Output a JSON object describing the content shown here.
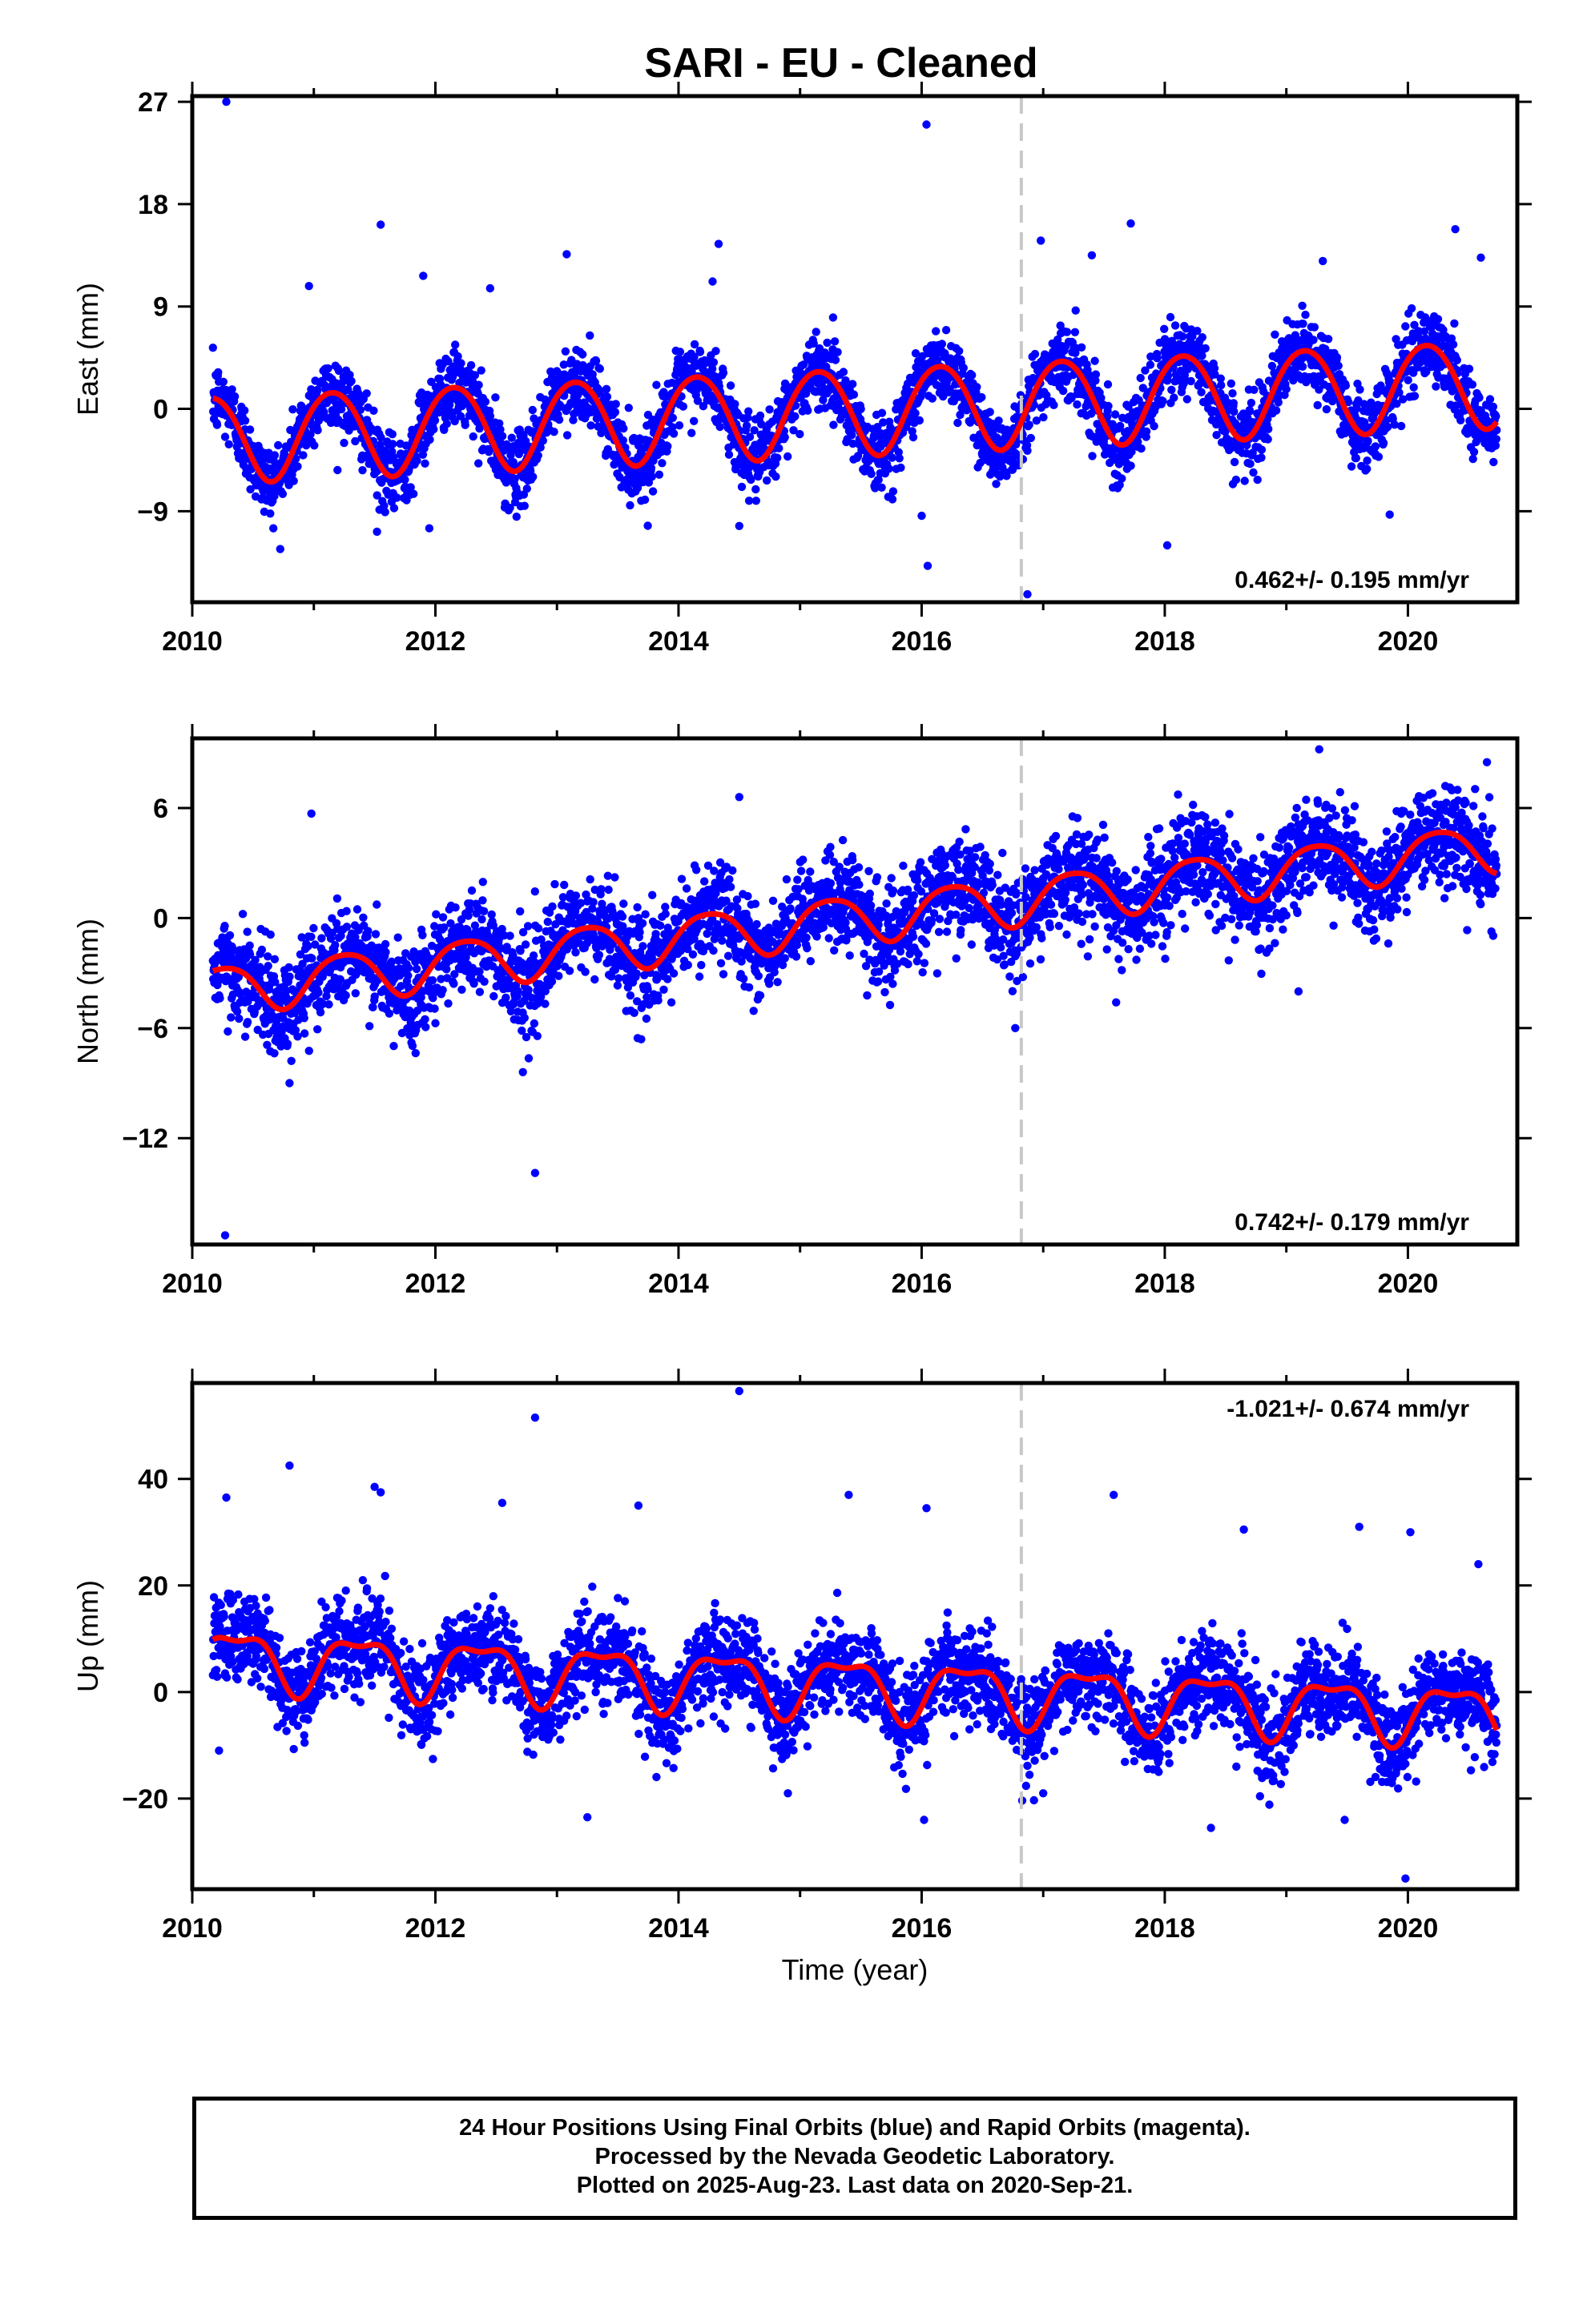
{
  "title": "SARI  - EU - Cleaned",
  "colors": {
    "data_points": "#0000ff",
    "model_fit": "#ff0000",
    "event_line": "#c8c8c8"
  },
  "xlabel": "Time (year)",
  "footer": {
    "line1": "24 Hour Positions Using Final Orbits (blue) and Rapid Orbits (magenta).",
    "line2": "Processed by the Nevada Geodetic Laboratory.",
    "line3": "Plotted on 2025-Aug-23. Last data on 2020-Sep-21."
  },
  "chart_data": [
    {
      "type": "scatter",
      "name": "east",
      "ylabel": "East (mm)",
      "rate_text": "0.462+/- 0.195 mm/yr",
      "xlim": [
        2010,
        2020.9
      ],
      "ylim": [
        -17,
        27.5
      ],
      "yticks": [
        -9,
        0,
        9,
        18,
        27
      ],
      "xticks": [
        2010,
        2012,
        2014,
        2016,
        2018,
        2020
      ],
      "event_line_x": 2016.82,
      "data_range": [
        2010.17,
        2020.73
      ],
      "model": {
        "ref_year": 2015.45,
        "offset": -0.1,
        "rate": 0.462,
        "annual_amp": 3.8,
        "annual_phase_year": 2010.4,
        "semiannual_amp": 0.3,
        "amp_growth": 0.0
      },
      "scatter_sigma": 1.6,
      "outliers": [
        [
          2010.28,
          27.0
        ],
        [
          2016.04,
          25.0
        ],
        [
          2011.55,
          16.2
        ],
        [
          2017.72,
          16.3
        ],
        [
          2020.39,
          15.8
        ],
        [
          2014.33,
          14.5
        ],
        [
          2016.98,
          14.8
        ],
        [
          2013.08,
          13.6
        ],
        [
          2017.4,
          13.5
        ],
        [
          2020.6,
          13.3
        ],
        [
          2019.3,
          13.0
        ],
        [
          2011.9,
          11.7
        ],
        [
          2014.28,
          11.2
        ],
        [
          2010.96,
          10.8
        ],
        [
          2012.45,
          10.6
        ],
        [
          2011.52,
          -10.8
        ],
        [
          2011.95,
          -10.5
        ],
        [
          2014.5,
          -10.3
        ],
        [
          2016.0,
          -9.4
        ],
        [
          2019.85,
          -9.3
        ],
        [
          2016.05,
          -13.8
        ],
        [
          2016.87,
          -16.3
        ],
        [
          2018.02,
          -12.0
        ]
      ]
    },
    {
      "type": "scatter",
      "name": "north",
      "ylabel": "North (mm)",
      "rate_text": "0.742+/- 0.179 mm/yr",
      "xlim": [
        2010,
        2020.9
      ],
      "ylim": [
        -17.8,
        9.8
      ],
      "yticks": [
        -12,
        -6,
        0,
        6
      ],
      "xticks": [
        2010,
        2012,
        2014,
        2016,
        2018,
        2020
      ],
      "event_line_x": 2016.82,
      "data_range": [
        2010.17,
        2020.73
      ],
      "model": {
        "ref_year": 2015.45,
        "offset": 0.0,
        "rate": 0.742,
        "annual_amp": 1.3,
        "annual_phase_year": 2010.5,
        "semiannual_amp": 0.2,
        "amp_growth": 0.0
      },
      "scatter_sigma": 1.3,
      "outliers": [
        [
          2012.82,
          -13.9
        ],
        [
          2010.27,
          -17.3
        ],
        [
          2010.98,
          5.7
        ],
        [
          2014.5,
          6.6
        ],
        [
          2019.27,
          9.2
        ],
        [
          2020.65,
          8.5
        ],
        [
          2012.72,
          -8.4
        ],
        [
          2010.8,
          -9.0
        ],
        [
          2019.1,
          -4.0
        ],
        [
          2017.6,
          -4.6
        ],
        [
          2016.77,
          -6.0
        ]
      ]
    },
    {
      "type": "scatter",
      "name": "up",
      "ylabel": "Up (mm)",
      "rate_text": "-1.021+/- 0.674 mm/yr",
      "xlim": [
        2010,
        2020.9
      ],
      "ylim": [
        -37,
        58
      ],
      "yticks": [
        -20,
        0,
        20,
        40
      ],
      "xticks": [
        2010,
        2012,
        2014,
        2016,
        2018,
        2020
      ],
      "event_line_x": 2016.82,
      "data_range": [
        2010.17,
        2020.73
      ],
      "model": {
        "ref_year": 2015.45,
        "offset": 1.2,
        "rate": -1.021,
        "annual_amp": 5.2,
        "annual_phase_year": 2010.62,
        "semiannual_amp": 2.0,
        "amp_growth": 0.0
      },
      "scatter_sigma": 4.2,
      "outliers": [
        [
          2014.5,
          56.5
        ],
        [
          2012.82,
          51.5
        ],
        [
          2010.8,
          42.5
        ],
        [
          2011.5,
          38.5
        ],
        [
          2011.55,
          37.5
        ],
        [
          2010.28,
          36.5
        ],
        [
          2017.58,
          37.0
        ],
        [
          2015.4,
          37.0
        ],
        [
          2013.67,
          35.0
        ],
        [
          2016.04,
          34.5
        ],
        [
          2012.55,
          35.5
        ],
        [
          2018.65,
          30.5
        ],
        [
          2019.6,
          31.0
        ],
        [
          2020.02,
          30.0
        ],
        [
          2013.25,
          -23.5
        ],
        [
          2016.02,
          -24.0
        ],
        [
          2018.38,
          -25.5
        ],
        [
          2019.48,
          -24.0
        ],
        [
          2019.98,
          -35.0
        ],
        [
          2014.9,
          -19.0
        ],
        [
          2017.0,
          -19.0
        ],
        [
          2020.58,
          24.0
        ],
        [
          2010.22,
          -11.0
        ]
      ]
    }
  ]
}
